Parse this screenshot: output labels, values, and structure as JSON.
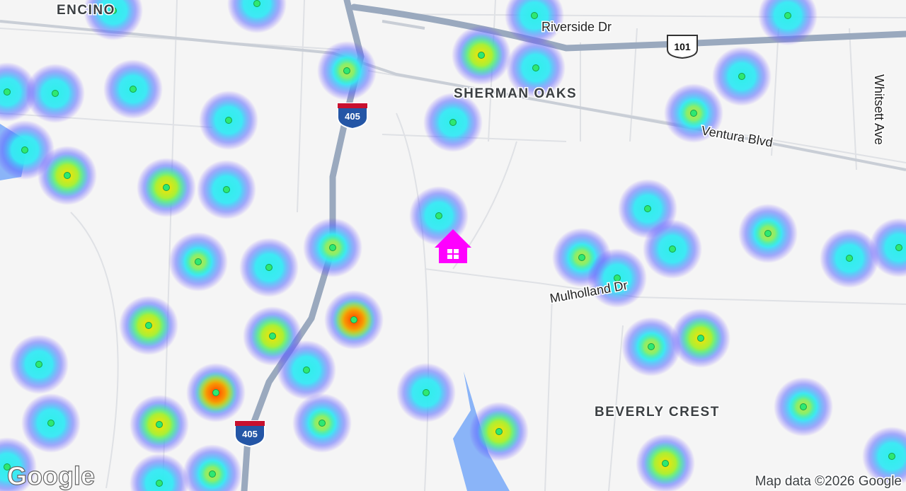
{
  "places": [
    "ENCINO",
    "SHERMAN OAKS",
    "BEVERLY CREST"
  ],
  "streets": [
    "Riverside Dr",
    "Ventura Blvd",
    "Whitsett Ave",
    "Mulholland Dr"
  ],
  "shields": [
    "405",
    "405",
    "101"
  ],
  "attribution": "Map data ©2026 Google",
  "logo": "Google"
}
